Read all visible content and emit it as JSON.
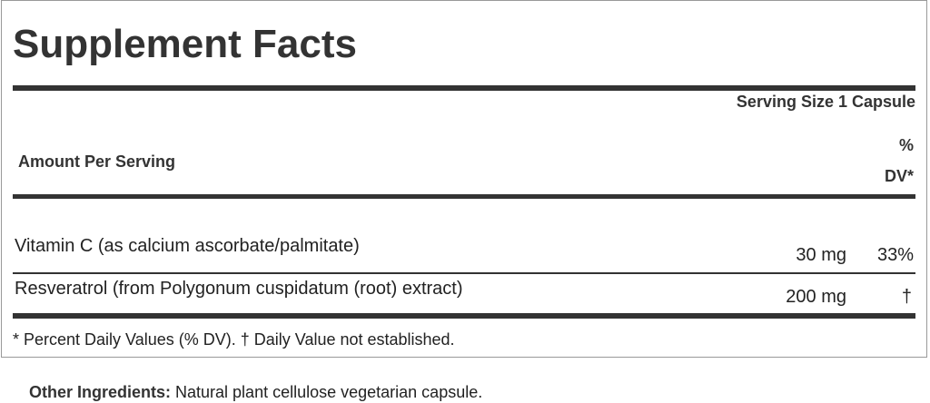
{
  "title": "Supplement Facts",
  "serving_size": "Serving Size 1 Capsule",
  "header": {
    "amount_per_serving": "Amount Per Serving",
    "dv_line1": "%",
    "dv_line2": "DV*"
  },
  "rows": [
    {
      "name": "Vitamin C (as calcium ascorbate/palmitate)",
      "amount": "30 mg",
      "dv": "33%"
    },
    {
      "name": "Resveratrol (from Polygonum cuspidatum (root) extract)",
      "amount": "200 mg",
      "dv": "†"
    }
  ],
  "footnote": "* Percent Daily Values (% DV). † Daily Value not established.",
  "other_ingredients": {
    "label": "Other Ingredients:",
    "text": " Natural plant cellulose vegetarian capsule."
  }
}
